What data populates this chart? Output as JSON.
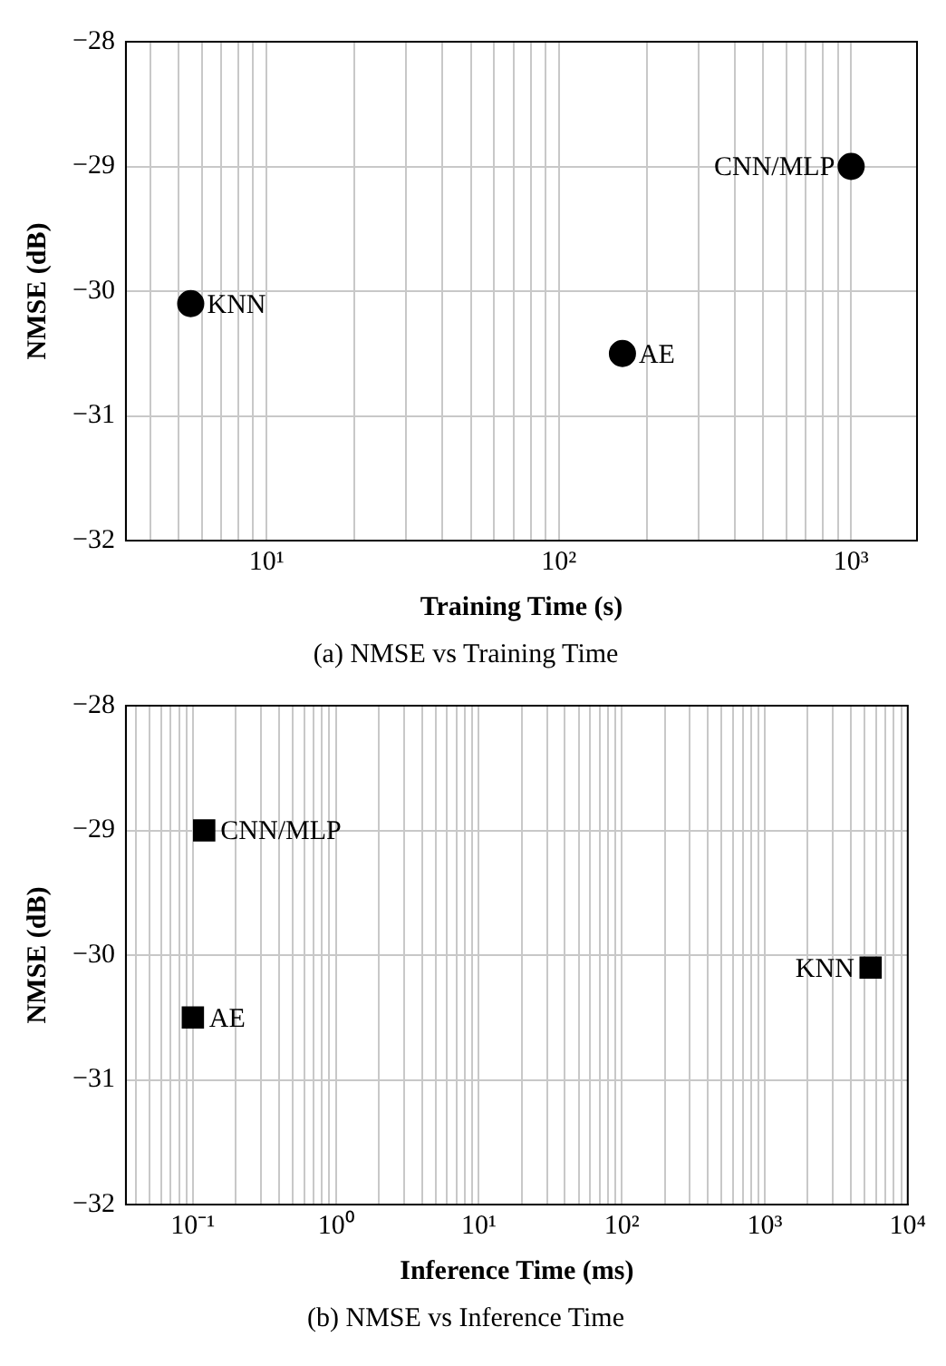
{
  "chart_data": [
    {
      "type": "scatter",
      "title": "(a) NMSE vs Training Time",
      "xlabel": "Training Time (s)",
      "ylabel": "NMSE (dB)",
      "log": "x",
      "marker": "circle",
      "grid": true,
      "legend": false,
      "series": [
        {
          "color": "#000000",
          "x": [
            5.5,
            165,
            1000
          ],
          "values": [
            -30.1,
            -30.5,
            -29
          ]
        }
      ],
      "xlim": [
        3.3,
        1680
      ],
      "xticks": [
        {
          "value": 4,
          "label": null
        },
        {
          "value": 5,
          "label": null
        },
        {
          "value": 6,
          "label": null
        },
        {
          "value": 7,
          "label": null
        },
        {
          "value": 8,
          "label": null
        },
        {
          "value": 9,
          "label": null
        },
        {
          "value": 10,
          "label": "10¹"
        },
        {
          "value": 20,
          "label": null
        },
        {
          "value": 30,
          "label": null
        },
        {
          "value": 40,
          "label": null
        },
        {
          "value": 50,
          "label": null
        },
        {
          "value": 60,
          "label": null
        },
        {
          "value": 70,
          "label": null
        },
        {
          "value": 80,
          "label": null
        },
        {
          "value": 90,
          "label": null
        },
        {
          "value": 100,
          "label": "10²"
        },
        {
          "value": 200,
          "label": null
        },
        {
          "value": 300,
          "label": null
        },
        {
          "value": 400,
          "label": null
        },
        {
          "value": 500,
          "label": null
        },
        {
          "value": 600,
          "label": null
        },
        {
          "value": 700,
          "label": null
        },
        {
          "value": 800,
          "label": null
        },
        {
          "value": 900,
          "label": null
        },
        {
          "value": 1000,
          "label": "10³"
        }
      ],
      "ylim": [
        -32,
        -28
      ],
      "yticks": [
        -32,
        -31,
        -30,
        -29,
        -28
      ],
      "annotations": [
        {
          "text": "KNN",
          "x": 5.5,
          "y": -30.1
        },
        {
          "text": "AE",
          "x": 165,
          "y": -30.5
        },
        {
          "text": "CNN/MLP",
          "x": 1000,
          "y": -29
        }
      ]
    },
    {
      "type": "scatter",
      "title": "(b) NMSE vs Inference Time",
      "xlabel": "Inference Time (ms)",
      "ylabel": "NMSE (dB)",
      "log": "x",
      "marker": "square",
      "grid": true,
      "legend": false,
      "series": [
        {
          "color": "#000000",
          "x": [
            0.12,
            0.1,
            5500
          ],
          "values": [
            -29,
            -30.5,
            -30.1
          ]
        }
      ],
      "xlim": [
        0.034,
        10000
      ],
      "xticks": [
        {
          "value": 0.04,
          "label": null
        },
        {
          "value": 0.05,
          "label": null
        },
        {
          "value": 0.06,
          "label": null
        },
        {
          "value": 0.07,
          "label": null
        },
        {
          "value": 0.08,
          "label": null
        },
        {
          "value": 0.09,
          "label": null
        },
        {
          "value": 0.1,
          "label": "10⁻¹"
        },
        {
          "value": 0.2,
          "label": null
        },
        {
          "value": 0.3,
          "label": null
        },
        {
          "value": 0.4,
          "label": null
        },
        {
          "value": 0.5,
          "label": null
        },
        {
          "value": 0.6,
          "label": null
        },
        {
          "value": 0.7,
          "label": null
        },
        {
          "value": 0.8,
          "label": null
        },
        {
          "value": 0.9,
          "label": null
        },
        {
          "value": 1,
          "label": "10⁰"
        },
        {
          "value": 2,
          "label": null
        },
        {
          "value": 3,
          "label": null
        },
        {
          "value": 4,
          "label": null
        },
        {
          "value": 5,
          "label": null
        },
        {
          "value": 6,
          "label": null
        },
        {
          "value": 7,
          "label": null
        },
        {
          "value": 8,
          "label": null
        },
        {
          "value": 9,
          "label": null
        },
        {
          "value": 10,
          "label": "10¹"
        },
        {
          "value": 20,
          "label": null
        },
        {
          "value": 30,
          "label": null
        },
        {
          "value": 40,
          "label": null
        },
        {
          "value": 50,
          "label": null
        },
        {
          "value": 60,
          "label": null
        },
        {
          "value": 70,
          "label": null
        },
        {
          "value": 80,
          "label": null
        },
        {
          "value": 90,
          "label": null
        },
        {
          "value": 100,
          "label": "10²"
        },
        {
          "value": 200,
          "label": null
        },
        {
          "value": 300,
          "label": null
        },
        {
          "value": 400,
          "label": null
        },
        {
          "value": 500,
          "label": null
        },
        {
          "value": 600,
          "label": null
        },
        {
          "value": 700,
          "label": null
        },
        {
          "value": 800,
          "label": null
        },
        {
          "value": 900,
          "label": null
        },
        {
          "value": 1000,
          "label": "10³"
        },
        {
          "value": 2000,
          "label": null
        },
        {
          "value": 3000,
          "label": null
        },
        {
          "value": 4000,
          "label": null
        },
        {
          "value": 5000,
          "label": null
        },
        {
          "value": 6000,
          "label": null
        },
        {
          "value": 7000,
          "label": null
        },
        {
          "value": 8000,
          "label": null
        },
        {
          "value": 9000,
          "label": null
        },
        {
          "value": 10000,
          "label": "10⁴"
        }
      ],
      "ylim": [
        -32,
        -28
      ],
      "yticks": [
        -32,
        -31,
        -30,
        -29,
        -28
      ],
      "annotations": [
        {
          "text": "CNN/MLP",
          "x": 0.12,
          "y": -29
        },
        {
          "text": "AE",
          "x": 0.1,
          "y": -30.5
        },
        {
          "text": "KNN",
          "x": 5500,
          "y": -30.1
        }
      ]
    }
  ]
}
